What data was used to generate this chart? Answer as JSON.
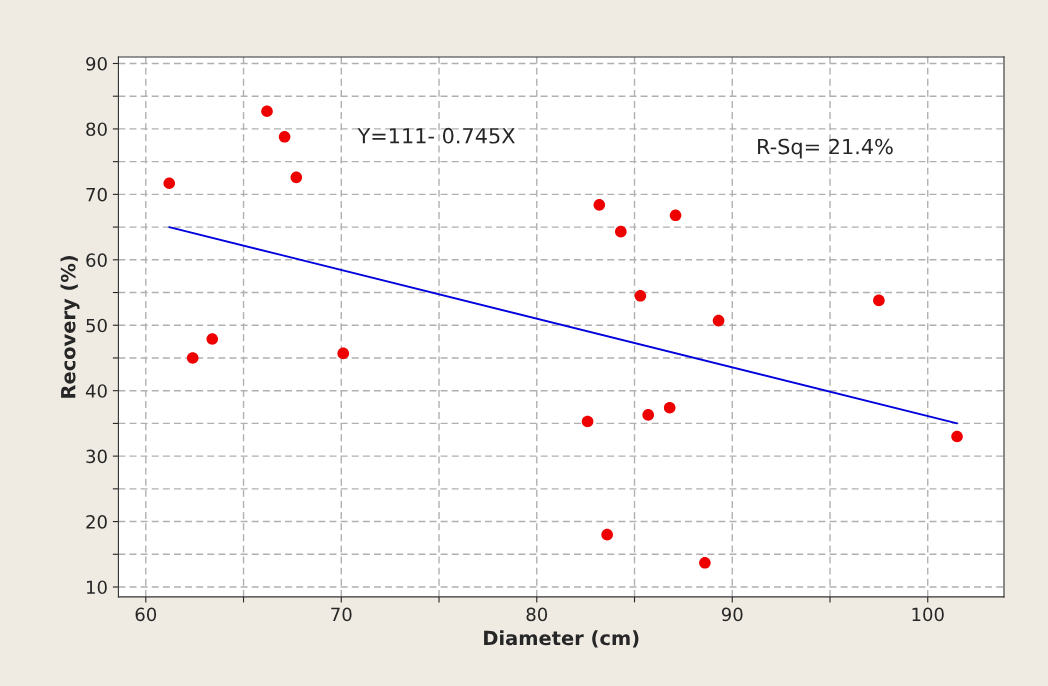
{
  "chart_data": {
    "type": "scatter",
    "xlabel": "Diameter (cm)",
    "ylabel": "Recovery (%)",
    "xlim": [
      58.6,
      103.9
    ],
    "ylim": [
      8.5,
      91
    ],
    "xticks": [
      60,
      {
        "value": 65,
        "label": null
      },
      70,
      {
        "value": 75,
        "label": null
      },
      80,
      {
        "value": 85,
        "label": null
      },
      90,
      {
        "value": 95,
        "label": null
      },
      100
    ],
    "yticks": [
      10,
      {
        "value": 15,
        "label": null
      },
      20,
      {
        "value": 25,
        "label": null
      },
      30,
      {
        "value": 35,
        "label": null
      },
      40,
      {
        "value": 45,
        "label": null
      },
      50,
      {
        "value": 55,
        "label": null
      },
      60,
      {
        "value": 65,
        "label": null
      },
      70,
      {
        "value": 75,
        "label": null
      },
      80,
      {
        "value": 85,
        "label": null
      },
      90
    ],
    "grid": true,
    "annotations": [
      "Y=111- 0.745X",
      "R-Sq= 21.4%"
    ],
    "series": [
      {
        "marker": "circle",
        "color": "#ee0000",
        "x": [
          61.2,
          62.4,
          63.4,
          66.2,
          67.1,
          67.7,
          70.1,
          82.6,
          83.2,
          83.6,
          84.3,
          85.3,
          85.7,
          86.8,
          87.1,
          88.6,
          89.3,
          97.5,
          101.5
        ],
        "values": [
          71.7,
          45.0,
          47.9,
          82.7,
          78.8,
          72.6,
          45.7,
          35.3,
          68.4,
          18.0,
          64.3,
          54.5,
          36.3,
          37.4,
          66.8,
          13.7,
          50.7,
          53.8,
          33.0
        ]
      },
      {
        "type": "line",
        "color": "#0000dd",
        "x": [
          61.2,
          101.5
        ],
        "values": [
          65.0,
          35.0
        ]
      }
    ]
  }
}
